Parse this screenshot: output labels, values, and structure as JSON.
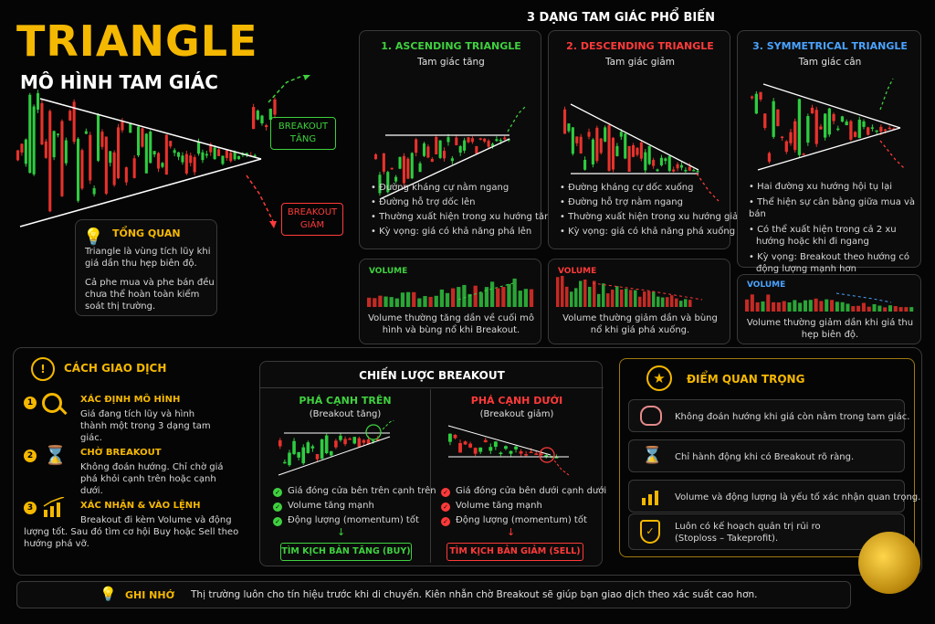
{
  "header": {
    "title": "TRIANGLE",
    "subtitle": "MÔ HÌNH TAM GIÁC",
    "section_title": "3 DẠNG TAM GIÁC PHỔ BIẾN"
  },
  "hero": {
    "breakout_up": "BREAKOUT\nTĂNG",
    "breakout_down": "BREAKOUT\nGIẢM"
  },
  "overview": {
    "title": "TỔNG QUAN",
    "text1": "Triangle là vùng tích lũy khi giá dần thu hẹp biên độ.",
    "text2": "Cả phe mua và phe bán đều chưa thể hoàn toàn kiểm soát thị trường."
  },
  "patterns": [
    {
      "title": "1. ASCENDING TRIANGLE",
      "subtitle": "Tam giác tăng",
      "bullets": [
        "Đường kháng cự nằm ngang",
        "Đường hỗ trợ dốc lên",
        "Thường xuất hiện trong xu hướng tăng",
        "Kỳ vọng: giá có khả năng phá lên"
      ],
      "volume_label": "VOLUME",
      "volume_note": "Volume thường tăng dần về cuối mô hình và bùng nổ khi Breakout."
    },
    {
      "title": "2. DESCENDING TRIANGLE",
      "subtitle": "Tam giác giảm",
      "bullets": [
        "Đường kháng cự dốc xuống",
        "Đường hỗ trợ nằm ngang",
        "Thường xuất hiện trong xu hướng giảm",
        "Kỳ vọng: giá có khả năng phá xuống"
      ],
      "volume_label": "VOLUME",
      "volume_note": "Volume thường giảm dần và bùng nổ khi giá phá xuống."
    },
    {
      "title": "3. SYMMETRICAL TRIANGLE",
      "subtitle": "Tam giác cân",
      "bullets": [
        "Hai đường xu hướng hội tụ lại",
        "Thể hiện sự cân bằng giữa mua và bán",
        "Có thể xuất hiện trong cả 2 xu hướng hoặc khi đi ngang",
        "Kỳ vọng: Breakout theo hướng có động lượng mạnh hơn"
      ],
      "volume_label": "VOLUME",
      "volume_note": "Volume thường giảm dần khi giá thu hẹp biên độ."
    }
  ],
  "trading": {
    "title": "CÁCH GIAO DỊCH",
    "steps": [
      {
        "num": "1",
        "title": "XÁC ĐỊNH MÔ HÌNH",
        "text": "Giá đang tích lũy và hình thành một trong 3 dạng tam giác."
      },
      {
        "num": "2",
        "title": "CHỜ BREAKOUT",
        "text": "Không đoán hướng. Chỉ chờ giá phá khỏi cạnh trên hoặc cạnh dưới."
      },
      {
        "num": "3",
        "title": "XÁC NHẬN & VÀO LỆNH",
        "text": "Breakout đi kèm Volume và động lượng tốt. Sau đó tìm cơ hội Buy hoặc Sell theo hướng phá vỡ."
      }
    ]
  },
  "strategy": {
    "title": "CHIẾN LƯỢC BREAKOUT",
    "up": {
      "title": "PHÁ CẠNH TRÊN",
      "subtitle": "(Breakout tăng)",
      "checks": [
        "Giá đóng cửa bên trên cạnh trên",
        "Volume tăng mạnh",
        "Động lượng (momentum) tốt"
      ],
      "action": "TÌM KỊCH BẢN TĂNG (BUY)"
    },
    "down": {
      "title": "PHÁ CẠNH DƯỚI",
      "subtitle": "(Breakout giảm)",
      "checks": [
        "Giá đóng cửa bên dưới cạnh dưới",
        "Volume tăng mạnh",
        "Động lượng (momentum) tốt"
      ],
      "action": "TÌM KỊCH BẢN GIẢM (SELL)"
    }
  },
  "key_points": {
    "title": "ĐIỂM QUAN TRỌNG",
    "items": [
      "Không đoán hướng khi giá còn nằm trong tam giác.",
      "Chỉ hành động khi có Breakout rõ ràng.",
      "Volume và động lượng là yếu tố xác nhận quan trọng.",
      "Luôn có kế hoạch quản trị rủi ro (Stoploss – Takeprofit)."
    ]
  },
  "remember": {
    "title": "GHI NHỚ",
    "text": "Thị trường luôn cho tín hiệu trước khi di chuyển. Kiên nhẫn chờ Breakout sẽ giúp bạn giao dịch theo xác suất cao hơn."
  },
  "colors": {
    "gold": "#f5b800",
    "green": "#3fd13f",
    "red": "#ff3a3a",
    "blue": "#4aa3ff"
  }
}
